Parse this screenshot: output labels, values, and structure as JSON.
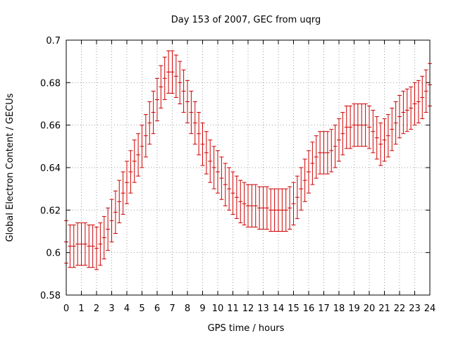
{
  "chart_data": {
    "type": "errorbar",
    "title": "Day 153 of 2007, GEC from uqrg",
    "xlabel": "GPS time / hours",
    "ylabel": "Global Electron Content / GECUs",
    "xlim": [
      0,
      24
    ],
    "ylim": [
      0.58,
      0.7
    ],
    "xticks": [
      "0",
      "1",
      "2",
      "3",
      "4",
      "5",
      "6",
      "7",
      "8",
      "9",
      "10",
      "11",
      "12",
      "13",
      "14",
      "15",
      "16",
      "17",
      "18",
      "19",
      "20",
      "21",
      "22",
      "23",
      "24"
    ],
    "yticks": [
      "0.58",
      "0.6",
      "0.62",
      "0.64",
      "0.66",
      "0.68",
      "0.7"
    ],
    "grid": true,
    "legend": "none",
    "color": "#cc0000",
    "series": [
      {
        "x": [
          0,
          0.25,
          0.5,
          0.75,
          1,
          1.25,
          1.5,
          1.75,
          2,
          2.25,
          2.5,
          2.75,
          3,
          3.25,
          3.5,
          3.75,
          4,
          4.25,
          4.5,
          4.75,
          5,
          5.25,
          5.5,
          5.75,
          6,
          6.25,
          6.5,
          6.75,
          7,
          7.25,
          7.5,
          7.75,
          8,
          8.25,
          8.5,
          8.75,
          9,
          9.25,
          9.5,
          9.75,
          10,
          10.25,
          10.5,
          10.75,
          11,
          11.25,
          11.5,
          11.75,
          12,
          12.25,
          12.5,
          12.75,
          13,
          13.25,
          13.5,
          13.75,
          14,
          14.25,
          14.5,
          14.75,
          15,
          15.25,
          15.5,
          15.75,
          16,
          16.25,
          16.5,
          16.75,
          17,
          17.25,
          17.5,
          17.75,
          18,
          18.25,
          18.5,
          18.75,
          19,
          19.25,
          19.5,
          19.75,
          20,
          20.25,
          20.5,
          20.75,
          21,
          21.25,
          21.5,
          21.75,
          22,
          22.25,
          22.5,
          22.75,
          23,
          23.25,
          23.5,
          23.75,
          24
        ],
        "y": [
          0.605,
          0.603,
          0.603,
          0.604,
          0.604,
          0.604,
          0.603,
          0.603,
          0.602,
          0.604,
          0.607,
          0.611,
          0.615,
          0.619,
          0.624,
          0.628,
          0.633,
          0.638,
          0.643,
          0.646,
          0.65,
          0.655,
          0.661,
          0.666,
          0.672,
          0.678,
          0.682,
          0.685,
          0.685,
          0.683,
          0.68,
          0.676,
          0.671,
          0.666,
          0.661,
          0.656,
          0.651,
          0.647,
          0.643,
          0.64,
          0.638,
          0.635,
          0.632,
          0.63,
          0.628,
          0.626,
          0.624,
          0.623,
          0.622,
          0.622,
          0.622,
          0.621,
          0.621,
          0.621,
          0.62,
          0.62,
          0.62,
          0.62,
          0.62,
          0.621,
          0.623,
          0.626,
          0.63,
          0.634,
          0.638,
          0.642,
          0.645,
          0.647,
          0.647,
          0.647,
          0.648,
          0.65,
          0.653,
          0.656,
          0.659,
          0.659,
          0.66,
          0.66,
          0.66,
          0.66,
          0.659,
          0.657,
          0.654,
          0.651,
          0.653,
          0.655,
          0.658,
          0.661,
          0.664,
          0.666,
          0.667,
          0.668,
          0.67,
          0.671,
          0.673,
          0.676,
          0.679
        ],
        "yerr": 0.01
      }
    ]
  }
}
